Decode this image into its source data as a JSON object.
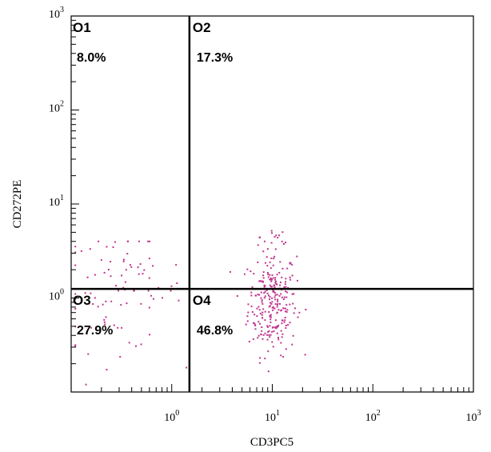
{
  "chart_data": {
    "type": "scatter",
    "xlabel": "CD3PC5",
    "ylabel": "CD272PE",
    "xscale": "log",
    "yscale": "log",
    "xlim": [
      0.1,
      1000
    ],
    "ylim": [
      0.1,
      1000
    ],
    "x_ticks": [
      {
        "base": "10",
        "exp": "0",
        "value": 1
      },
      {
        "base": "10",
        "exp": "1",
        "value": 10
      },
      {
        "base": "10",
        "exp": "2",
        "value": 100
      },
      {
        "base": "10",
        "exp": "3",
        "value": 1000
      }
    ],
    "y_ticks": [
      {
        "base": "10",
        "exp": "0",
        "value": 1
      },
      {
        "base": "10",
        "exp": "1",
        "value": 10
      },
      {
        "base": "10",
        "exp": "2",
        "value": 100
      },
      {
        "base": "10",
        "exp": "3",
        "value": 1000
      }
    ],
    "quadrant_gates": {
      "x": 1.5,
      "y": 1.25
    },
    "quadrants": [
      {
        "name": "O1",
        "percent": "8.0%",
        "position": "top-left"
      },
      {
        "name": "O2",
        "percent": "17.3%",
        "position": "top-right"
      },
      {
        "name": "O3",
        "percent": "27.9%",
        "position": "bottom-left"
      },
      {
        "name": "O4",
        "percent": "46.8%",
        "position": "bottom-right"
      }
    ],
    "clusters": [
      {
        "count": 260,
        "x_center": 10,
        "x_spread_log": 0.12,
        "y_center": 0.9,
        "y_spread_log": 0.28,
        "x_range": [
          3,
          40
        ],
        "y_range": [
          0.11,
          4
        ]
      },
      {
        "count": 90,
        "x_center": 0.3,
        "x_spread_log": 0.32,
        "y_center": 1.2,
        "y_spread_log": 0.32,
        "x_range": [
          0.11,
          1.4
        ],
        "y_range": [
          0.12,
          4
        ]
      },
      {
        "count": 12,
        "x_center": 11,
        "x_spread_log": 0.08,
        "y_center": 4.5,
        "y_spread_log": 0.12,
        "x_range": [
          6,
          20
        ],
        "y_range": [
          3,
          8
        ]
      }
    ],
    "grid": false,
    "colors": {
      "points": "#c0358e",
      "axes": "#000000",
      "gates": "#000000"
    }
  }
}
